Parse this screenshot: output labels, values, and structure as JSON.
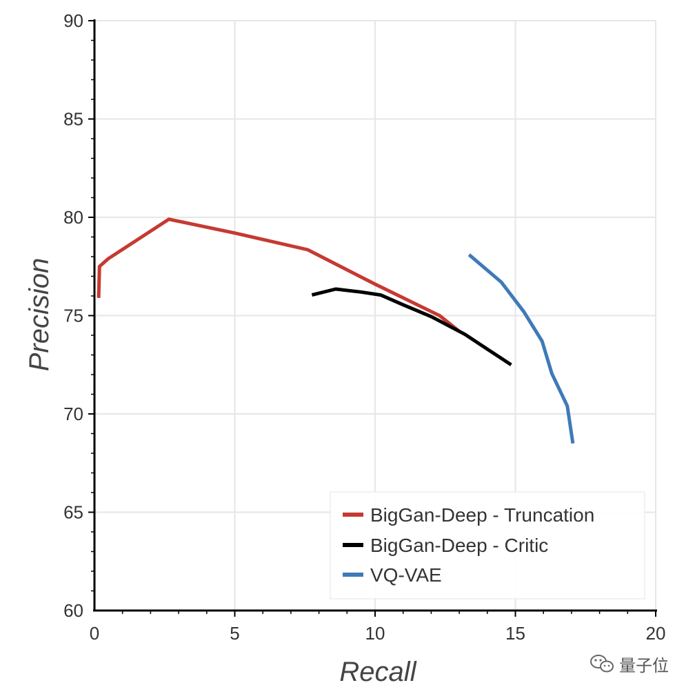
{
  "chart_data": {
    "type": "line",
    "xlabel": "Recall",
    "ylabel": "Precision",
    "xlim": [
      0,
      20
    ],
    "ylim": [
      60,
      90
    ],
    "xticks": [
      "0",
      "5",
      "10",
      "15",
      "20"
    ],
    "yticks": [
      "60",
      "65",
      "70",
      "75",
      "80",
      "85",
      "90"
    ],
    "grid": true,
    "legend_position": "bottom-right",
    "series": [
      {
        "name": "BigGan-Deep - Truncation",
        "color": "#c53a32",
        "points": [
          [
            0.15,
            75.9
          ],
          [
            0.18,
            77.5
          ],
          [
            0.5,
            77.9
          ],
          [
            2.65,
            79.9
          ],
          [
            5.0,
            79.2
          ],
          [
            7.6,
            78.35
          ],
          [
            10.0,
            76.6
          ],
          [
            12.3,
            75.0
          ],
          [
            13.0,
            74.2
          ]
        ]
      },
      {
        "name": "BigGan-Deep - Critic",
        "color": "#000000",
        "points": [
          [
            7.75,
            76.05
          ],
          [
            8.6,
            76.35
          ],
          [
            9.5,
            76.2
          ],
          [
            10.2,
            76.05
          ],
          [
            11.0,
            75.55
          ],
          [
            12.0,
            74.95
          ],
          [
            13.2,
            74.05
          ],
          [
            14.1,
            73.2
          ],
          [
            14.85,
            72.5
          ]
        ]
      },
      {
        "name": "VQ-VAE",
        "color": "#3f7ab8",
        "points": [
          [
            13.35,
            78.1
          ],
          [
            14.5,
            76.7
          ],
          [
            15.3,
            75.2
          ],
          [
            15.95,
            73.7
          ],
          [
            16.3,
            72.05
          ],
          [
            16.85,
            70.4
          ],
          [
            17.05,
            68.5
          ]
        ]
      }
    ]
  },
  "watermark": {
    "text": "量子位",
    "icon": "wechat-icon"
  }
}
